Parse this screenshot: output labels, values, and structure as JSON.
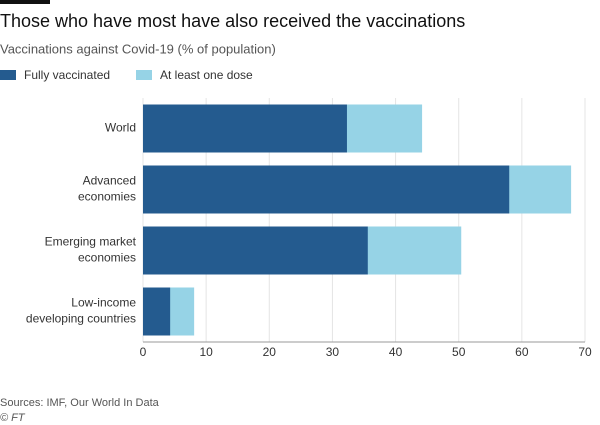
{
  "chart_data": {
    "type": "overlapping-hbar",
    "title": "Those who have most have also received the vaccinations",
    "subtitle": "Vaccinations against Covid-19 (% of population)",
    "categories": [
      "World",
      "Advanced\neconomies",
      "Emerging market\neconomies",
      "Low-income\ndeveloping countries"
    ],
    "series": [
      {
        "name": "Fully vaccinated",
        "color": "#245b8f",
        "values": [
          32.3,
          58.0,
          35.6,
          4.3
        ]
      },
      {
        "name": "At least one dose",
        "color": "#96d3e6",
        "values": [
          44.2,
          67.8,
          50.4,
          8.1
        ]
      }
    ],
    "xlim": [
      0,
      70
    ],
    "xticks": [
      0,
      10,
      20,
      30,
      40,
      50,
      60,
      70
    ],
    "grid": true,
    "source": "Sources: IMF, Our World In Data",
    "credit": "© FT"
  }
}
